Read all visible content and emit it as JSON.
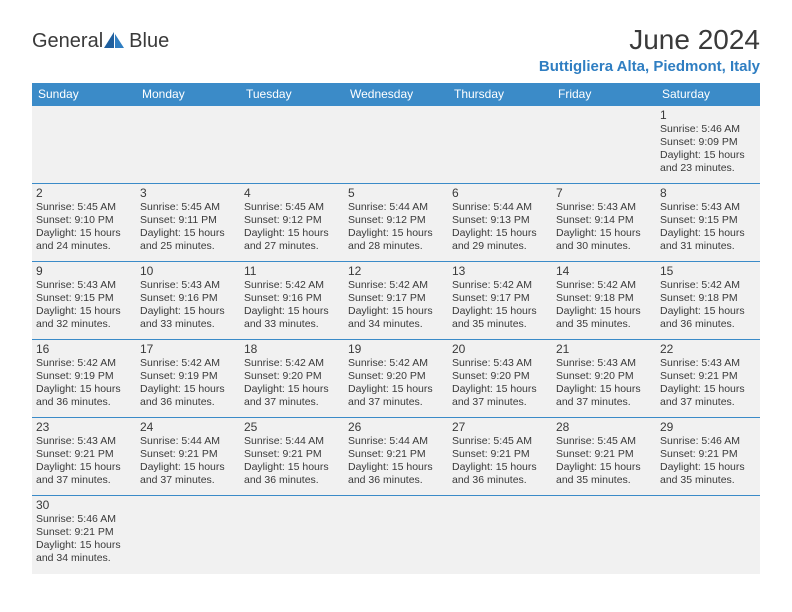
{
  "brand": {
    "name_a": "General",
    "name_b": "Blue"
  },
  "title": "June 2024",
  "location": "Buttigliera Alta, Piedmont, Italy",
  "colors": {
    "header_bg": "#3b8bc8",
    "header_text": "#ffffff",
    "cell_bg": "#f1f1f1",
    "cell_border": "#3b8bc8",
    "text": "#3a3a3a",
    "brand_blue": "#2f7ec2"
  },
  "weekdays": [
    "Sunday",
    "Monday",
    "Tuesday",
    "Wednesday",
    "Thursday",
    "Friday",
    "Saturday"
  ],
  "weeks": [
    [
      null,
      null,
      null,
      null,
      null,
      null,
      {
        "n": "1",
        "sr": "Sunrise: 5:46 AM",
        "ss": "Sunset: 9:09 PM",
        "dl": "Daylight: 15 hours and 23 minutes."
      }
    ],
    [
      {
        "n": "2",
        "sr": "Sunrise: 5:45 AM",
        "ss": "Sunset: 9:10 PM",
        "dl": "Daylight: 15 hours and 24 minutes."
      },
      {
        "n": "3",
        "sr": "Sunrise: 5:45 AM",
        "ss": "Sunset: 9:11 PM",
        "dl": "Daylight: 15 hours and 25 minutes."
      },
      {
        "n": "4",
        "sr": "Sunrise: 5:45 AM",
        "ss": "Sunset: 9:12 PM",
        "dl": "Daylight: 15 hours and 27 minutes."
      },
      {
        "n": "5",
        "sr": "Sunrise: 5:44 AM",
        "ss": "Sunset: 9:12 PM",
        "dl": "Daylight: 15 hours and 28 minutes."
      },
      {
        "n": "6",
        "sr": "Sunrise: 5:44 AM",
        "ss": "Sunset: 9:13 PM",
        "dl": "Daylight: 15 hours and 29 minutes."
      },
      {
        "n": "7",
        "sr": "Sunrise: 5:43 AM",
        "ss": "Sunset: 9:14 PM",
        "dl": "Daylight: 15 hours and 30 minutes."
      },
      {
        "n": "8",
        "sr": "Sunrise: 5:43 AM",
        "ss": "Sunset: 9:15 PM",
        "dl": "Daylight: 15 hours and 31 minutes."
      }
    ],
    [
      {
        "n": "9",
        "sr": "Sunrise: 5:43 AM",
        "ss": "Sunset: 9:15 PM",
        "dl": "Daylight: 15 hours and 32 minutes."
      },
      {
        "n": "10",
        "sr": "Sunrise: 5:43 AM",
        "ss": "Sunset: 9:16 PM",
        "dl": "Daylight: 15 hours and 33 minutes."
      },
      {
        "n": "11",
        "sr": "Sunrise: 5:42 AM",
        "ss": "Sunset: 9:16 PM",
        "dl": "Daylight: 15 hours and 33 minutes."
      },
      {
        "n": "12",
        "sr": "Sunrise: 5:42 AM",
        "ss": "Sunset: 9:17 PM",
        "dl": "Daylight: 15 hours and 34 minutes."
      },
      {
        "n": "13",
        "sr": "Sunrise: 5:42 AM",
        "ss": "Sunset: 9:17 PM",
        "dl": "Daylight: 15 hours and 35 minutes."
      },
      {
        "n": "14",
        "sr": "Sunrise: 5:42 AM",
        "ss": "Sunset: 9:18 PM",
        "dl": "Daylight: 15 hours and 35 minutes."
      },
      {
        "n": "15",
        "sr": "Sunrise: 5:42 AM",
        "ss": "Sunset: 9:18 PM",
        "dl": "Daylight: 15 hours and 36 minutes."
      }
    ],
    [
      {
        "n": "16",
        "sr": "Sunrise: 5:42 AM",
        "ss": "Sunset: 9:19 PM",
        "dl": "Daylight: 15 hours and 36 minutes."
      },
      {
        "n": "17",
        "sr": "Sunrise: 5:42 AM",
        "ss": "Sunset: 9:19 PM",
        "dl": "Daylight: 15 hours and 36 minutes."
      },
      {
        "n": "18",
        "sr": "Sunrise: 5:42 AM",
        "ss": "Sunset: 9:20 PM",
        "dl": "Daylight: 15 hours and 37 minutes."
      },
      {
        "n": "19",
        "sr": "Sunrise: 5:42 AM",
        "ss": "Sunset: 9:20 PM",
        "dl": "Daylight: 15 hours and 37 minutes."
      },
      {
        "n": "20",
        "sr": "Sunrise: 5:43 AM",
        "ss": "Sunset: 9:20 PM",
        "dl": "Daylight: 15 hours and 37 minutes."
      },
      {
        "n": "21",
        "sr": "Sunrise: 5:43 AM",
        "ss": "Sunset: 9:20 PM",
        "dl": "Daylight: 15 hours and 37 minutes."
      },
      {
        "n": "22",
        "sr": "Sunrise: 5:43 AM",
        "ss": "Sunset: 9:21 PM",
        "dl": "Daylight: 15 hours and 37 minutes."
      }
    ],
    [
      {
        "n": "23",
        "sr": "Sunrise: 5:43 AM",
        "ss": "Sunset: 9:21 PM",
        "dl": "Daylight: 15 hours and 37 minutes."
      },
      {
        "n": "24",
        "sr": "Sunrise: 5:44 AM",
        "ss": "Sunset: 9:21 PM",
        "dl": "Daylight: 15 hours and 37 minutes."
      },
      {
        "n": "25",
        "sr": "Sunrise: 5:44 AM",
        "ss": "Sunset: 9:21 PM",
        "dl": "Daylight: 15 hours and 36 minutes."
      },
      {
        "n": "26",
        "sr": "Sunrise: 5:44 AM",
        "ss": "Sunset: 9:21 PM",
        "dl": "Daylight: 15 hours and 36 minutes."
      },
      {
        "n": "27",
        "sr": "Sunrise: 5:45 AM",
        "ss": "Sunset: 9:21 PM",
        "dl": "Daylight: 15 hours and 36 minutes."
      },
      {
        "n": "28",
        "sr": "Sunrise: 5:45 AM",
        "ss": "Sunset: 9:21 PM",
        "dl": "Daylight: 15 hours and 35 minutes."
      },
      {
        "n": "29",
        "sr": "Sunrise: 5:46 AM",
        "ss": "Sunset: 9:21 PM",
        "dl": "Daylight: 15 hours and 35 minutes."
      }
    ],
    [
      {
        "n": "30",
        "sr": "Sunrise: 5:46 AM",
        "ss": "Sunset: 9:21 PM",
        "dl": "Daylight: 15 hours and 34 minutes."
      },
      null,
      null,
      null,
      null,
      null,
      null
    ]
  ]
}
